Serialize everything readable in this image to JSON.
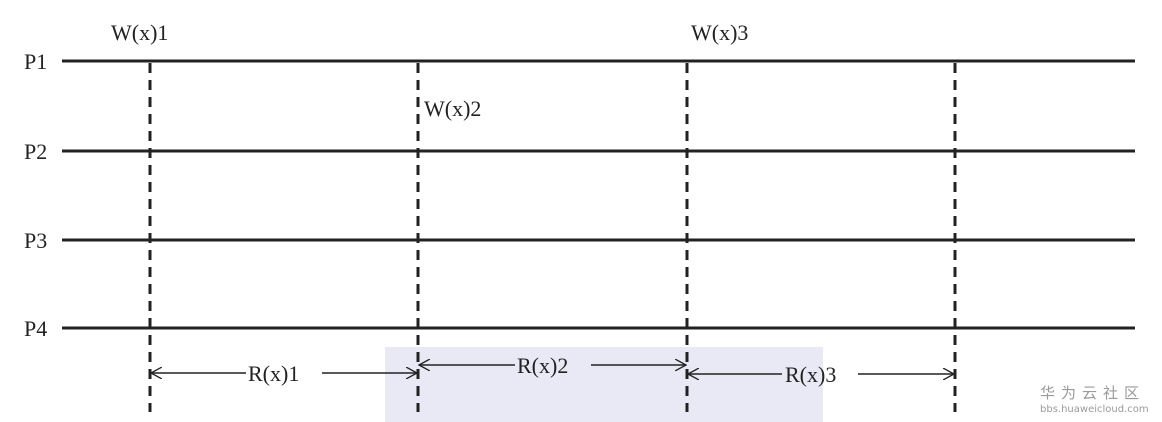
{
  "processes": [
    "P1",
    "P2",
    "P3",
    "P4"
  ],
  "writes": [
    {
      "label": "W(x)1",
      "process": "P1"
    },
    {
      "label": "W(x)2",
      "process": "P2"
    },
    {
      "label": "W(x)3",
      "process": "P1"
    }
  ],
  "reads": [
    "R(x)1",
    "R(x)2",
    "R(x)3"
  ],
  "colors": {
    "line": "#222222",
    "highlight": "#e9e9f5"
  },
  "watermark": {
    "title": "华为云社区",
    "url": "bbs.huaweicloud.com"
  }
}
